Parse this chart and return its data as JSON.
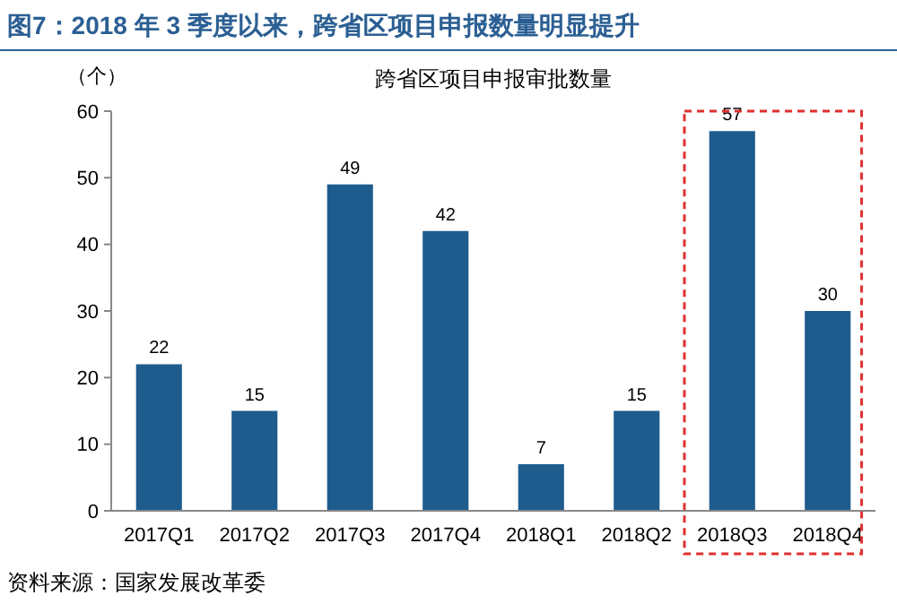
{
  "chart_data": {
    "type": "bar",
    "title": "图7：2018 年 3 季度以来，跨省区项目申报数量明显提升",
    "subtitle": "跨省区项目申报审批数量",
    "ylabel": "（个）",
    "annotations": [
      "资料来源：国家发展改革委"
    ],
    "categories": [
      "2017Q1",
      "2017Q2",
      "2017Q3",
      "2017Q4",
      "2018Q1",
      "2018Q2",
      "2018Q3",
      "2018Q4"
    ],
    "values": [
      22,
      15,
      49,
      42,
      7,
      15,
      57,
      30
    ],
    "color": "#1f5c8e",
    "ylim": [
      0,
      60
    ],
    "yticks": [
      0,
      10,
      20,
      30,
      40,
      50,
      60
    ],
    "grid": false,
    "data_labels": true
  }
}
